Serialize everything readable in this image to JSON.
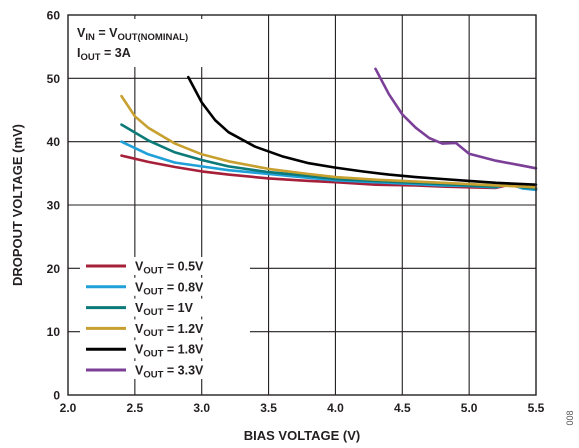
{
  "chart_data": {
    "type": "line",
    "xlabel": "BIAS VOLTAGE (V)",
    "ylabel": "DROPOUT VOLTAGE (mV)",
    "xlim": [
      2.0,
      5.5
    ],
    "ylim": [
      0,
      60
    ],
    "x_ticks": [
      "2.0",
      "2.5",
      "3.0",
      "3.5",
      "4.0",
      "4.5",
      "5.0",
      "5.5"
    ],
    "y_ticks": [
      "0",
      "10",
      "20",
      "30",
      "40",
      "50",
      "60"
    ],
    "grid": true,
    "legend_position": "bottom-left",
    "annotation": {
      "line1": {
        "a": "V",
        "a_sub": "IN",
        "b": " = V",
        "b_sub": "OUT(NOMINAL)",
        "c": ""
      },
      "line2": {
        "a": "I",
        "a_sub": "OUT",
        "b": " = 3A"
      }
    },
    "figure_number": "008",
    "series": [
      {
        "name": "V_OUT = 0.5V",
        "label_main": "V",
        "label_sub": "OUT",
        "label_rest": " = 0.5V",
        "color": "#a6203a",
        "x": [
          2.4,
          2.6,
          2.8,
          3.0,
          3.2,
          3.5,
          3.8,
          4.0,
          4.3,
          4.6,
          4.8,
          5.0,
          5.2,
          5.3,
          5.4,
          5.5
        ],
        "y": [
          37.8,
          36.8,
          36.0,
          35.3,
          34.8,
          34.2,
          33.8,
          33.6,
          33.2,
          33.1,
          32.9,
          32.8,
          32.7,
          33.2,
          32.7,
          32.5
        ]
      },
      {
        "name": "V_OUT = 0.8V",
        "label_main": "V",
        "label_sub": "OUT",
        "label_rest": " = 0.8V",
        "color": "#1fa0d8",
        "x": [
          2.4,
          2.6,
          2.8,
          3.0,
          3.2,
          3.5,
          3.8,
          4.0,
          4.3,
          4.6,
          4.8,
          5.0,
          5.2,
          5.3,
          5.4,
          5.5
        ],
        "y": [
          40.0,
          38.0,
          36.7,
          36.1,
          35.5,
          34.9,
          34.3,
          33.9,
          33.6,
          33.3,
          33.1,
          33.0,
          32.8,
          33.4,
          32.6,
          32.4
        ]
      },
      {
        "name": "V_OUT = 1V",
        "label_main": "V",
        "label_sub": "OUT",
        "label_rest": " = 1V",
        "color": "#0b7a78",
        "x": [
          2.4,
          2.6,
          2.8,
          3.0,
          3.2,
          3.5,
          3.8,
          4.0,
          4.3,
          4.6,
          4.8,
          5.0,
          5.2,
          5.3,
          5.4,
          5.5
        ],
        "y": [
          42.7,
          40.2,
          38.3,
          37.1,
          36.1,
          35.2,
          34.6,
          34.1,
          33.8,
          33.5,
          33.3,
          33.1,
          32.9,
          33.4,
          32.8,
          32.6
        ]
      },
      {
        "name": "V_OUT = 1.2V",
        "label_main": "V",
        "label_sub": "OUT",
        "label_rest": " = 1.2V",
        "color": "#c8a030",
        "x": [
          2.4,
          2.5,
          2.6,
          2.8,
          3.0,
          3.2,
          3.5,
          3.8,
          4.0,
          4.3,
          4.6,
          4.8,
          5.0,
          5.2,
          5.4,
          5.5
        ],
        "y": [
          47.2,
          44.0,
          42.2,
          39.7,
          38.0,
          36.9,
          35.7,
          34.9,
          34.4,
          34.0,
          33.7,
          33.5,
          33.3,
          33.1,
          32.9,
          32.8
        ]
      },
      {
        "name": "V_OUT = 1.8V",
        "label_main": "V",
        "label_sub": "OUT",
        "label_rest": " = 1.8V",
        "color": "#000000",
        "x": [
          2.9,
          3.0,
          3.1,
          3.2,
          3.4,
          3.6,
          3.8,
          4.0,
          4.2,
          4.4,
          4.6,
          4.8,
          5.0,
          5.2,
          5.4,
          5.5
        ],
        "y": [
          50.2,
          46.2,
          43.4,
          41.5,
          39.2,
          37.7,
          36.6,
          35.9,
          35.3,
          34.8,
          34.4,
          34.1,
          33.8,
          33.5,
          33.3,
          33.2
        ]
      },
      {
        "name": "V_OUT = 3.3V",
        "label_main": "V",
        "label_sub": "OUT",
        "label_rest": " = 3.3V",
        "color": "#7b3f98",
        "x": [
          4.3,
          4.4,
          4.5,
          4.6,
          4.7,
          4.8,
          4.9,
          5.0,
          5.2,
          5.4,
          5.5
        ],
        "y": [
          51.5,
          47.5,
          44.3,
          42.2,
          40.6,
          39.7,
          39.8,
          38.1,
          37.0,
          36.2,
          35.8
        ]
      }
    ]
  }
}
